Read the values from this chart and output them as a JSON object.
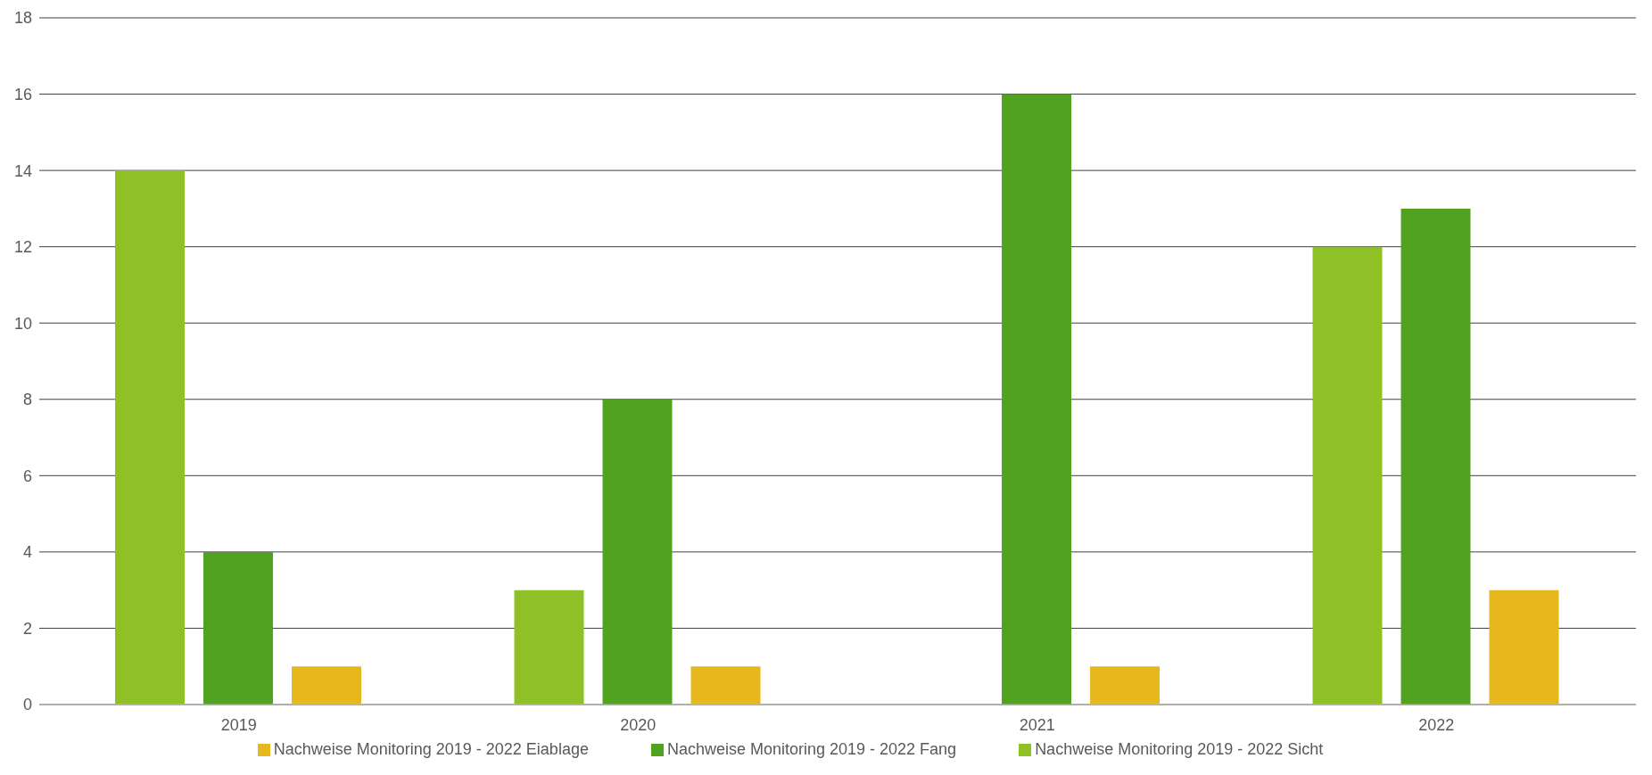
{
  "chart_data": {
    "type": "bar",
    "categories": [
      "2019",
      "2020",
      "2021",
      "2022"
    ],
    "series": [
      {
        "name": "Nachweise Monitoring 2019 - 2022 Sicht",
        "color": "#8fc127",
        "values": [
          14,
          3,
          0,
          12
        ]
      },
      {
        "name": "Nachweise Monitoring 2019 - 2022 Fang",
        "color": "#52a222",
        "values": [
          4,
          8,
          16,
          13
        ]
      },
      {
        "name": "Nachweise Monitoring 2019 - 2022 Eiablage",
        "color": "#e6b81e",
        "values": [
          1,
          1,
          1,
          3
        ]
      }
    ],
    "ylim": [
      0,
      18
    ],
    "yticks": [
      0,
      2,
      4,
      6,
      8,
      10,
      12,
      14,
      16,
      18
    ],
    "grid": "y",
    "legend": "bottom"
  }
}
